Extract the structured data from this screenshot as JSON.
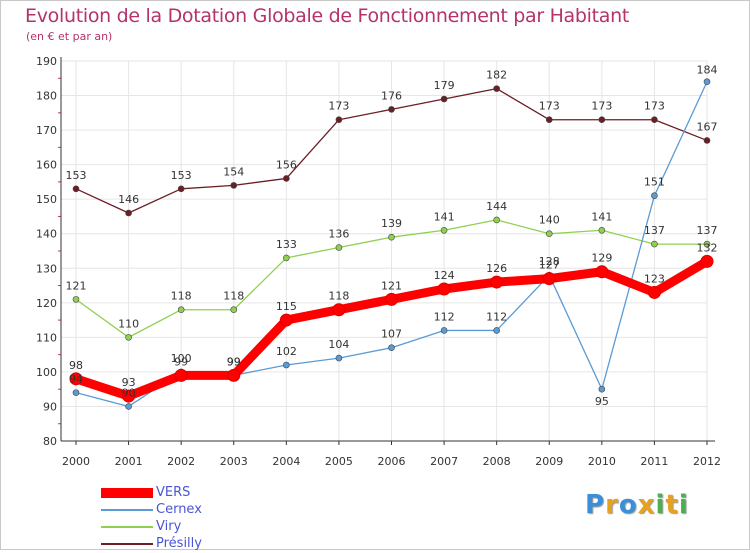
{
  "header": {
    "title": "Evolution de la Dotation Globale de Fonctionnement par Habitant",
    "subtitle": "(en € et par an)"
  },
  "logo": {
    "text": "Proxiti",
    "colors": [
      "#3a8fd8",
      "#e8a020",
      "#3a8fd8",
      "#e8a020",
      "#4cb050",
      "#e8a020",
      "#4cb050"
    ]
  },
  "colors": {
    "title": "#b5326b",
    "axis": "#333333",
    "grid": "#e6e6e6",
    "legend_text": "#4a55d4"
  },
  "chart_data": {
    "type": "line",
    "title": "Evolution de la Dotation Globale de Fonctionnement par Habitant",
    "subtitle": "(en € et par an)",
    "xlabel": "",
    "ylabel": "",
    "x": [
      "2000",
      "2001",
      "2002",
      "2003",
      "2004",
      "2005",
      "2006",
      "2007",
      "2008",
      "2009",
      "2010",
      "2011",
      "2012"
    ],
    "yticks": [
      "80",
      "90",
      "100",
      "110",
      "120",
      "130",
      "140",
      "150",
      "160",
      "170",
      "180",
      "190"
    ],
    "ylim": [
      80,
      190
    ],
    "grid": true,
    "legend_position": "bottom-left",
    "series": [
      {
        "name": "VERS",
        "color": "#ff0000",
        "values": [
          98,
          93,
          99,
          99,
          115,
          118,
          121,
          124,
          126,
          127,
          129,
          123,
          132
        ],
        "labels": [
          "98",
          "93",
          "99",
          "99",
          "115",
          "118",
          "121",
          "124",
          "126",
          "127",
          "129",
          "123",
          "132"
        ]
      },
      {
        "name": "Cernex",
        "color": "#5b9bd5",
        "values": [
          94,
          90,
          100,
          99,
          102,
          104,
          107,
          112,
          112,
          128,
          95,
          151,
          184
        ],
        "labels": [
          "94",
          "90",
          "100",
          "99",
          "102",
          "104",
          "107",
          "112",
          "112",
          "128",
          "95",
          "151",
          "184"
        ]
      },
      {
        "name": "Viry",
        "color": "#90d050",
        "values": [
          121,
          110,
          118,
          118,
          133,
          136,
          139,
          141,
          144,
          140,
          141,
          137,
          137
        ],
        "labels": [
          "121",
          "110",
          "118",
          "118",
          "133",
          "136",
          "139",
          "141",
          "144",
          "140",
          "141",
          "137",
          "137"
        ]
      },
      {
        "name": "Présilly",
        "color": "#6b1f24",
        "values": [
          153,
          146,
          153,
          154,
          156,
          173,
          176,
          179,
          182,
          173,
          173,
          173,
          167
        ],
        "labels": [
          "153",
          "146",
          "153",
          "154",
          "156",
          "173",
          "176",
          "179",
          "182",
          "173",
          "173",
          "173",
          "167"
        ]
      }
    ]
  }
}
